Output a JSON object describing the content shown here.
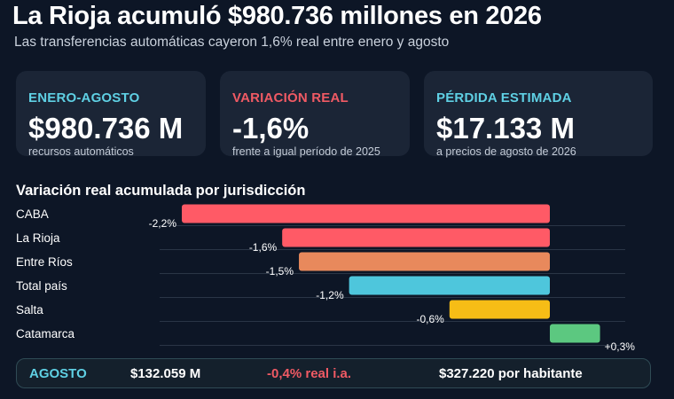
{
  "header": {
    "title": "La Rioja acumuló $980.736 millones en 2026",
    "subtitle": "Las transferencias automáticas cayeron 1,6% real entre enero y agosto"
  },
  "cards": [
    {
      "label": "ENERO-AGOSTO",
      "value": "$980.736 M",
      "note": "recursos automáticos",
      "label_color": "#5fd0e4"
    },
    {
      "label": "VARIACIÓN REAL",
      "value": "-1,6%",
      "note": "frente a igual período de 2025",
      "label_color": "#f05a64"
    },
    {
      "label": "PÉRDIDA ESTIMADA",
      "value": "$17.133 M",
      "note": "a precios de agosto de 2026",
      "label_color": "#5fd0e4"
    }
  ],
  "chart_data": {
    "type": "bar",
    "orientation": "horizontal",
    "title": "Variación real acumulada por jurisdicción",
    "categories": [
      "CABA",
      "La Rioja",
      "Entre Ríos",
      "Total país",
      "Salta",
      "Catamarca"
    ],
    "values": [
      -2.2,
      -1.6,
      -1.5,
      -1.2,
      -0.6,
      0.3
    ],
    "value_labels": [
      "-2,2%",
      "-1,6%",
      "-1,5%",
      "-1,2%",
      "-0,6%",
      "+0,3%"
    ],
    "colors": [
      "#ff5a66",
      "#ff5a66",
      "#e8895c",
      "#4ec6dc",
      "#f6bd16",
      "#5cc880"
    ],
    "xlim": [
      -2.2,
      0.3
    ],
    "grid": true
  },
  "footer": {
    "label": "AGOSTO",
    "amount": "$132.059 M",
    "variation": "-0,4% real i.a.",
    "per_capita": "$327.220 por habitante"
  }
}
